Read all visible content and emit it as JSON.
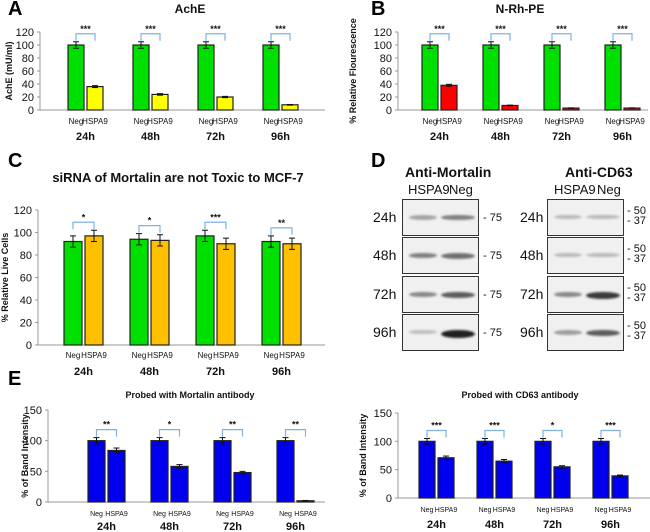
{
  "panels": {
    "A": {
      "letter": "A"
    },
    "B": {
      "letter": "B"
    },
    "C": {
      "letter": "C"
    },
    "D": {
      "letter": "D"
    },
    "E": {
      "letter": "E"
    }
  },
  "chart_data": [
    {
      "id": "A",
      "type": "bar",
      "title": "AchE",
      "ylabel": "AchE (mU/ml)",
      "xlabel": "",
      "ylim": [
        0,
        120
      ],
      "yticks": [
        0,
        20,
        40,
        60,
        80,
        100,
        120
      ],
      "categories": [
        "24h",
        "48h",
        "72h",
        "96h"
      ],
      "bar_labels": [
        "Neg",
        "HSPA9"
      ],
      "series": [
        {
          "name": "Neg",
          "color": "#00e000",
          "values": [
            100,
            100,
            100,
            100
          ],
          "errors": [
            5,
            5,
            5,
            5
          ]
        },
        {
          "name": "HSPA9",
          "color": "#ffff00",
          "values": [
            36,
            24,
            20,
            8
          ],
          "errors": [
            1.5,
            1.2,
            1,
            0.5
          ]
        }
      ],
      "significance": [
        "***",
        "***",
        "***",
        "***"
      ],
      "grid": false
    },
    {
      "id": "B",
      "type": "bar",
      "title": "N-Rh-PE",
      "ylabel": "% Relative Flourescence",
      "xlabel": "",
      "ylim": [
        0,
        120
      ],
      "yticks": [
        0,
        20,
        40,
        60,
        80,
        100,
        120
      ],
      "categories": [
        "24h",
        "48h",
        "72h",
        "96h"
      ],
      "bar_labels": [
        "Neg",
        "HSPA9"
      ],
      "series": [
        {
          "name": "Neg",
          "color": "#00e000",
          "values": [
            100,
            100,
            100,
            100
          ],
          "errors": [
            5,
            5,
            5,
            5
          ]
        },
        {
          "name": "HSPA9",
          "color": "#ff0000",
          "values": [
            38,
            7,
            3,
            3
          ],
          "errors": [
            1.5,
            0.5,
            0.3,
            0.3
          ]
        }
      ],
      "significance": [
        "***",
        "***",
        "***",
        "***"
      ],
      "grid": false
    },
    {
      "id": "C",
      "type": "bar",
      "title": "siRNA of Mortalin are not Toxic to MCF-7",
      "ylabel": "% Relative Live Cells",
      "xlabel": "",
      "ylim": [
        0,
        120
      ],
      "yticks": [
        0,
        20,
        40,
        60,
        80,
        100,
        120
      ],
      "categories": [
        "24h",
        "48h",
        "72h",
        "96h"
      ],
      "bar_labels": [
        "Neg",
        "HSPA9"
      ],
      "series": [
        {
          "name": "Neg",
          "color": "#00e000",
          "values": [
            92,
            94,
            97,
            92
          ],
          "errors": [
            5,
            5,
            5,
            5
          ]
        },
        {
          "name": "HSPA9",
          "color": "#ffc000",
          "values": [
            97,
            93,
            90,
            90
          ],
          "errors": [
            5,
            5,
            5,
            5
          ]
        }
      ],
      "significance": [
        "*",
        "*",
        "***",
        "**"
      ],
      "grid": false
    },
    {
      "id": "E1",
      "type": "bar",
      "title": "Probed with Mortalin antibody",
      "ylabel": "% of Band Intensity",
      "xlabel": "",
      "ylim": [
        0,
        150
      ],
      "yticks": [
        0,
        50,
        100,
        150
      ],
      "categories": [
        "24h",
        "48h",
        "72h",
        "96h"
      ],
      "bar_labels": [
        "Neg",
        "HSPA9"
      ],
      "series": [
        {
          "name": "Neg",
          "color": "#0000ee",
          "values": [
            100,
            100,
            100,
            100
          ],
          "errors": [
            5,
            5,
            5,
            5
          ]
        },
        {
          "name": "HSPA9",
          "color": "#0000ee",
          "values": [
            84,
            58,
            48,
            2
          ],
          "errors": [
            4,
            3,
            2,
            0.5
          ]
        }
      ],
      "significance": [
        "**",
        "*",
        "**",
        "**"
      ],
      "grid": false
    },
    {
      "id": "E2",
      "type": "bar",
      "title": "Probed with CD63 antibody",
      "ylabel": "% of Band Intensity",
      "xlabel": "",
      "ylim": [
        0,
        150
      ],
      "yticks": [
        0,
        50,
        100,
        150
      ],
      "categories": [
        "24h",
        "48h",
        "72h",
        "96h"
      ],
      "bar_labels": [
        "Neg",
        "HSPA9"
      ],
      "series": [
        {
          "name": "Neg",
          "color": "#0000ee",
          "values": [
            100,
            100,
            100,
            100
          ],
          "errors": [
            5,
            5,
            5,
            5
          ]
        },
        {
          "name": "HSPA9",
          "color": "#0000ee",
          "values": [
            71,
            65,
            55,
            39
          ],
          "errors": [
            3,
            3,
            2,
            1.5
          ]
        }
      ],
      "significance": [
        "***",
        "***",
        "*",
        "***"
      ],
      "grid": false
    }
  ],
  "blots": [
    {
      "id": "mortalin",
      "title": "Anti-Mortalin",
      "lanes": [
        "HSPA9",
        "Neg"
      ],
      "rows": [
        {
          "time": "24h",
          "markers": [
            "75"
          ],
          "hspa9": 0.25,
          "neg": 0.45
        },
        {
          "time": "48h",
          "markers": [
            "75"
          ],
          "hspa9": 0.45,
          "neg": 0.55
        },
        {
          "time": "72h",
          "markers": [
            "75"
          ],
          "hspa9": 0.4,
          "neg": 0.65
        },
        {
          "time": "96h",
          "markers": [
            "75"
          ],
          "hspa9": 0.1,
          "neg": 1.0
        }
      ]
    },
    {
      "id": "cd63",
      "title": "Anti-CD63",
      "lanes": [
        "HSPA9",
        "Neg"
      ],
      "rows": [
        {
          "time": "24h",
          "markers": [
            "50",
            "37"
          ],
          "hspa9": 0.12,
          "neg": 0.12
        },
        {
          "time": "48h",
          "markers": [
            "50",
            "37"
          ],
          "hspa9": 0.12,
          "neg": 0.12
        },
        {
          "time": "72h",
          "markers": [
            "50",
            "37"
          ],
          "hspa9": 0.4,
          "neg": 0.85
        },
        {
          "time": "96h",
          "markers": [
            "50",
            "37"
          ],
          "hspa9": 0.3,
          "neg": 0.65
        }
      ]
    }
  ]
}
